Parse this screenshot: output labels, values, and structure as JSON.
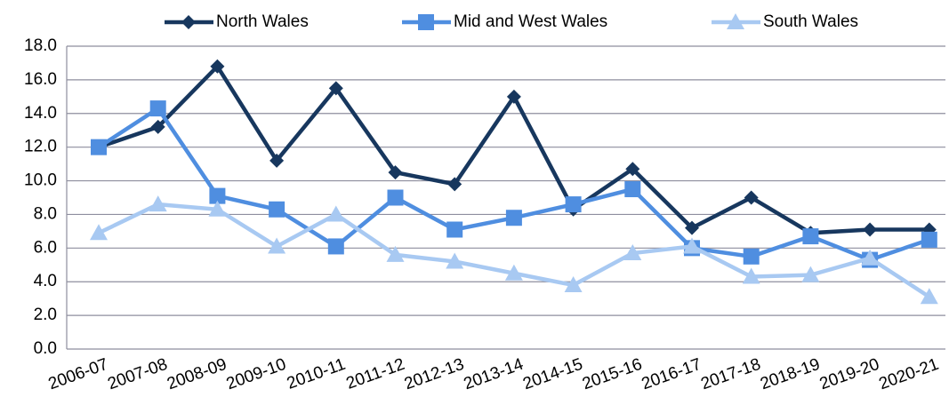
{
  "chart_data": {
    "type": "line",
    "categories": [
      "2006-07",
      "2007-08",
      "2008-09",
      "2009-10",
      "2010-11",
      "2011-12",
      "2012-13",
      "2013-14",
      "2014-15",
      "2015-16",
      "2016-17",
      "2017-18",
      "2018-19",
      "2019-20",
      "2020-21"
    ],
    "series": [
      {
        "name": "North Wales",
        "color": "#17375e",
        "marker": "diamond",
        "values": [
          12.0,
          13.2,
          16.8,
          11.2,
          15.5,
          10.5,
          9.8,
          15.0,
          8.3,
          10.7,
          7.2,
          9.0,
          6.9,
          7.1,
          7.1
        ]
      },
      {
        "name": "Mid and West Wales",
        "color": "#4f8ee0",
        "marker": "square",
        "values": [
          12.0,
          14.3,
          9.1,
          8.3,
          6.1,
          9.0,
          7.1,
          7.8,
          8.6,
          9.5,
          6.0,
          5.5,
          6.7,
          5.3,
          6.5
        ]
      },
      {
        "name": "South Wales",
        "color": "#a8c9f2",
        "marker": "triangle",
        "values": [
          6.9,
          8.6,
          8.3,
          6.1,
          8.0,
          5.6,
          5.2,
          4.5,
          3.8,
          5.7,
          6.1,
          4.3,
          4.4,
          5.4,
          3.1
        ]
      }
    ],
    "ylim": [
      0,
      18
    ],
    "yticks": [
      {
        "value": 0,
        "label": "0.0"
      },
      {
        "value": 2,
        "label": "2.0"
      },
      {
        "value": 4,
        "label": "4.0"
      },
      {
        "value": 6,
        "label": "6.0"
      },
      {
        "value": 8,
        "label": "8.0"
      },
      {
        "value": 10,
        "label": "10.0"
      },
      {
        "value": 12,
        "label": "12.0"
      },
      {
        "value": 14,
        "label": "14.0"
      },
      {
        "value": 16,
        "label": "16.0"
      },
      {
        "value": 18,
        "label": "18.0"
      }
    ],
    "grid": true,
    "legend": "top"
  }
}
